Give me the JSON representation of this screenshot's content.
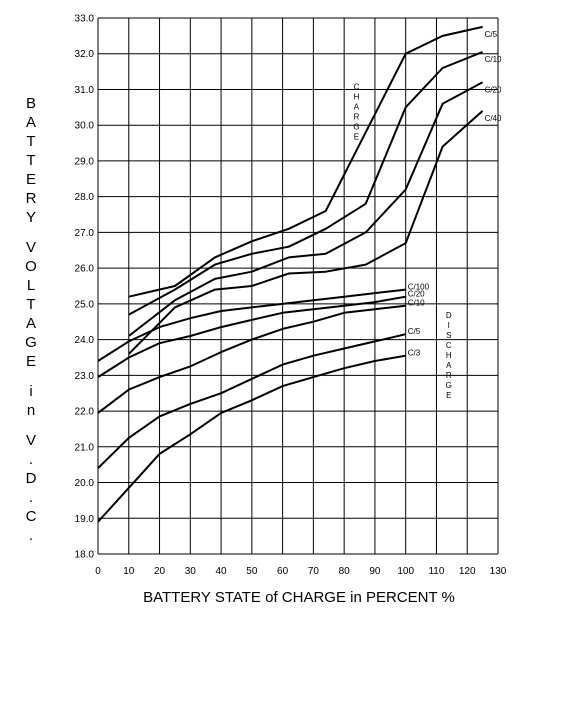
{
  "chart_data": {
    "type": "line",
    "xlabel": "BATTERY STATE of CHARGE in PERCENT %",
    "ylabel": "BATTERY VOLTAGE in V.D.C.",
    "xlim": [
      0,
      130
    ],
    "ylim": [
      18.0,
      33.0
    ],
    "x_ticks": [
      "0",
      "10",
      "20",
      "30",
      "40",
      "50",
      "60",
      "70",
      "80",
      "90",
      "100",
      "110",
      "120",
      "130"
    ],
    "y_ticks": [
      "18.0",
      "19.0",
      "20.0",
      "21.0",
      "22.0",
      "23.0",
      "24.0",
      "25.0",
      "26.0",
      "27.0",
      "28.0",
      "29.0",
      "30.0",
      "31.0",
      "32.0",
      "33.0"
    ],
    "grid": true,
    "annotations": [
      {
        "text": "CHARGE",
        "x": 84,
        "y": 31.0
      },
      {
        "text": "DISCHARGE",
        "x": 114,
        "y": 24.6
      }
    ],
    "series": [
      {
        "name": "C/5",
        "group": "charge",
        "x": [
          10,
          25,
          38,
          50,
          62,
          74,
          87,
          100,
          112,
          125
        ],
        "y": [
          25.2,
          25.5,
          26.3,
          26.75,
          27.1,
          27.6,
          29.8,
          32.0,
          32.5,
          32.75
        ]
      },
      {
        "name": "C/10",
        "group": "charge",
        "x": [
          10,
          25,
          38,
          50,
          62,
          74,
          87,
          100,
          112,
          125
        ],
        "y": [
          24.7,
          25.4,
          26.1,
          26.4,
          26.6,
          27.1,
          27.8,
          30.5,
          31.6,
          32.05
        ]
      },
      {
        "name": "C/20",
        "group": "charge",
        "x": [
          10,
          25,
          38,
          50,
          62,
          74,
          87,
          100,
          112,
          125
        ],
        "y": [
          24.1,
          25.1,
          25.7,
          25.9,
          26.3,
          26.4,
          27.0,
          28.2,
          30.6,
          31.2
        ]
      },
      {
        "name": "C/40",
        "group": "charge",
        "x": [
          10,
          25,
          38,
          50,
          62,
          74,
          87,
          100,
          112,
          125
        ],
        "y": [
          23.6,
          24.9,
          25.4,
          25.5,
          25.85,
          25.9,
          26.1,
          26.7,
          29.4,
          30.4
        ]
      },
      {
        "name": "C/100",
        "group": "discharge",
        "x": [
          0,
          10,
          20,
          30,
          40,
          50,
          60,
          70,
          80,
          90,
          100
        ],
        "y": [
          23.4,
          23.95,
          24.35,
          24.6,
          24.8,
          24.9,
          25.0,
          25.1,
          25.2,
          25.3,
          25.4
        ]
      },
      {
        "name": "C/20",
        "group": "discharge",
        "x": [
          0,
          10,
          20,
          30,
          40,
          50,
          60,
          70,
          80,
          90,
          100
        ],
        "y": [
          22.95,
          23.5,
          23.9,
          24.1,
          24.35,
          24.55,
          24.75,
          24.85,
          24.95,
          25.05,
          25.2
        ]
      },
      {
        "name": "C/10",
        "group": "discharge",
        "x": [
          0,
          10,
          20,
          30,
          40,
          50,
          60,
          70,
          80,
          90,
          100
        ],
        "y": [
          21.95,
          22.6,
          22.95,
          23.25,
          23.65,
          24.0,
          24.3,
          24.5,
          24.75,
          24.85,
          24.95
        ]
      },
      {
        "name": "C/5",
        "group": "discharge",
        "x": [
          0,
          10,
          20,
          30,
          40,
          50,
          60,
          70,
          80,
          90,
          100
        ],
        "y": [
          20.4,
          21.25,
          21.85,
          22.2,
          22.5,
          22.9,
          23.3,
          23.55,
          23.75,
          23.95,
          24.15
        ]
      },
      {
        "name": "C/3",
        "group": "discharge",
        "x": [
          0,
          10,
          20,
          30,
          40,
          50,
          60,
          70,
          80,
          90,
          100
        ],
        "y": [
          18.9,
          19.85,
          20.8,
          21.35,
          21.95,
          22.3,
          22.7,
          22.95,
          23.2,
          23.4,
          23.55
        ]
      }
    ]
  }
}
